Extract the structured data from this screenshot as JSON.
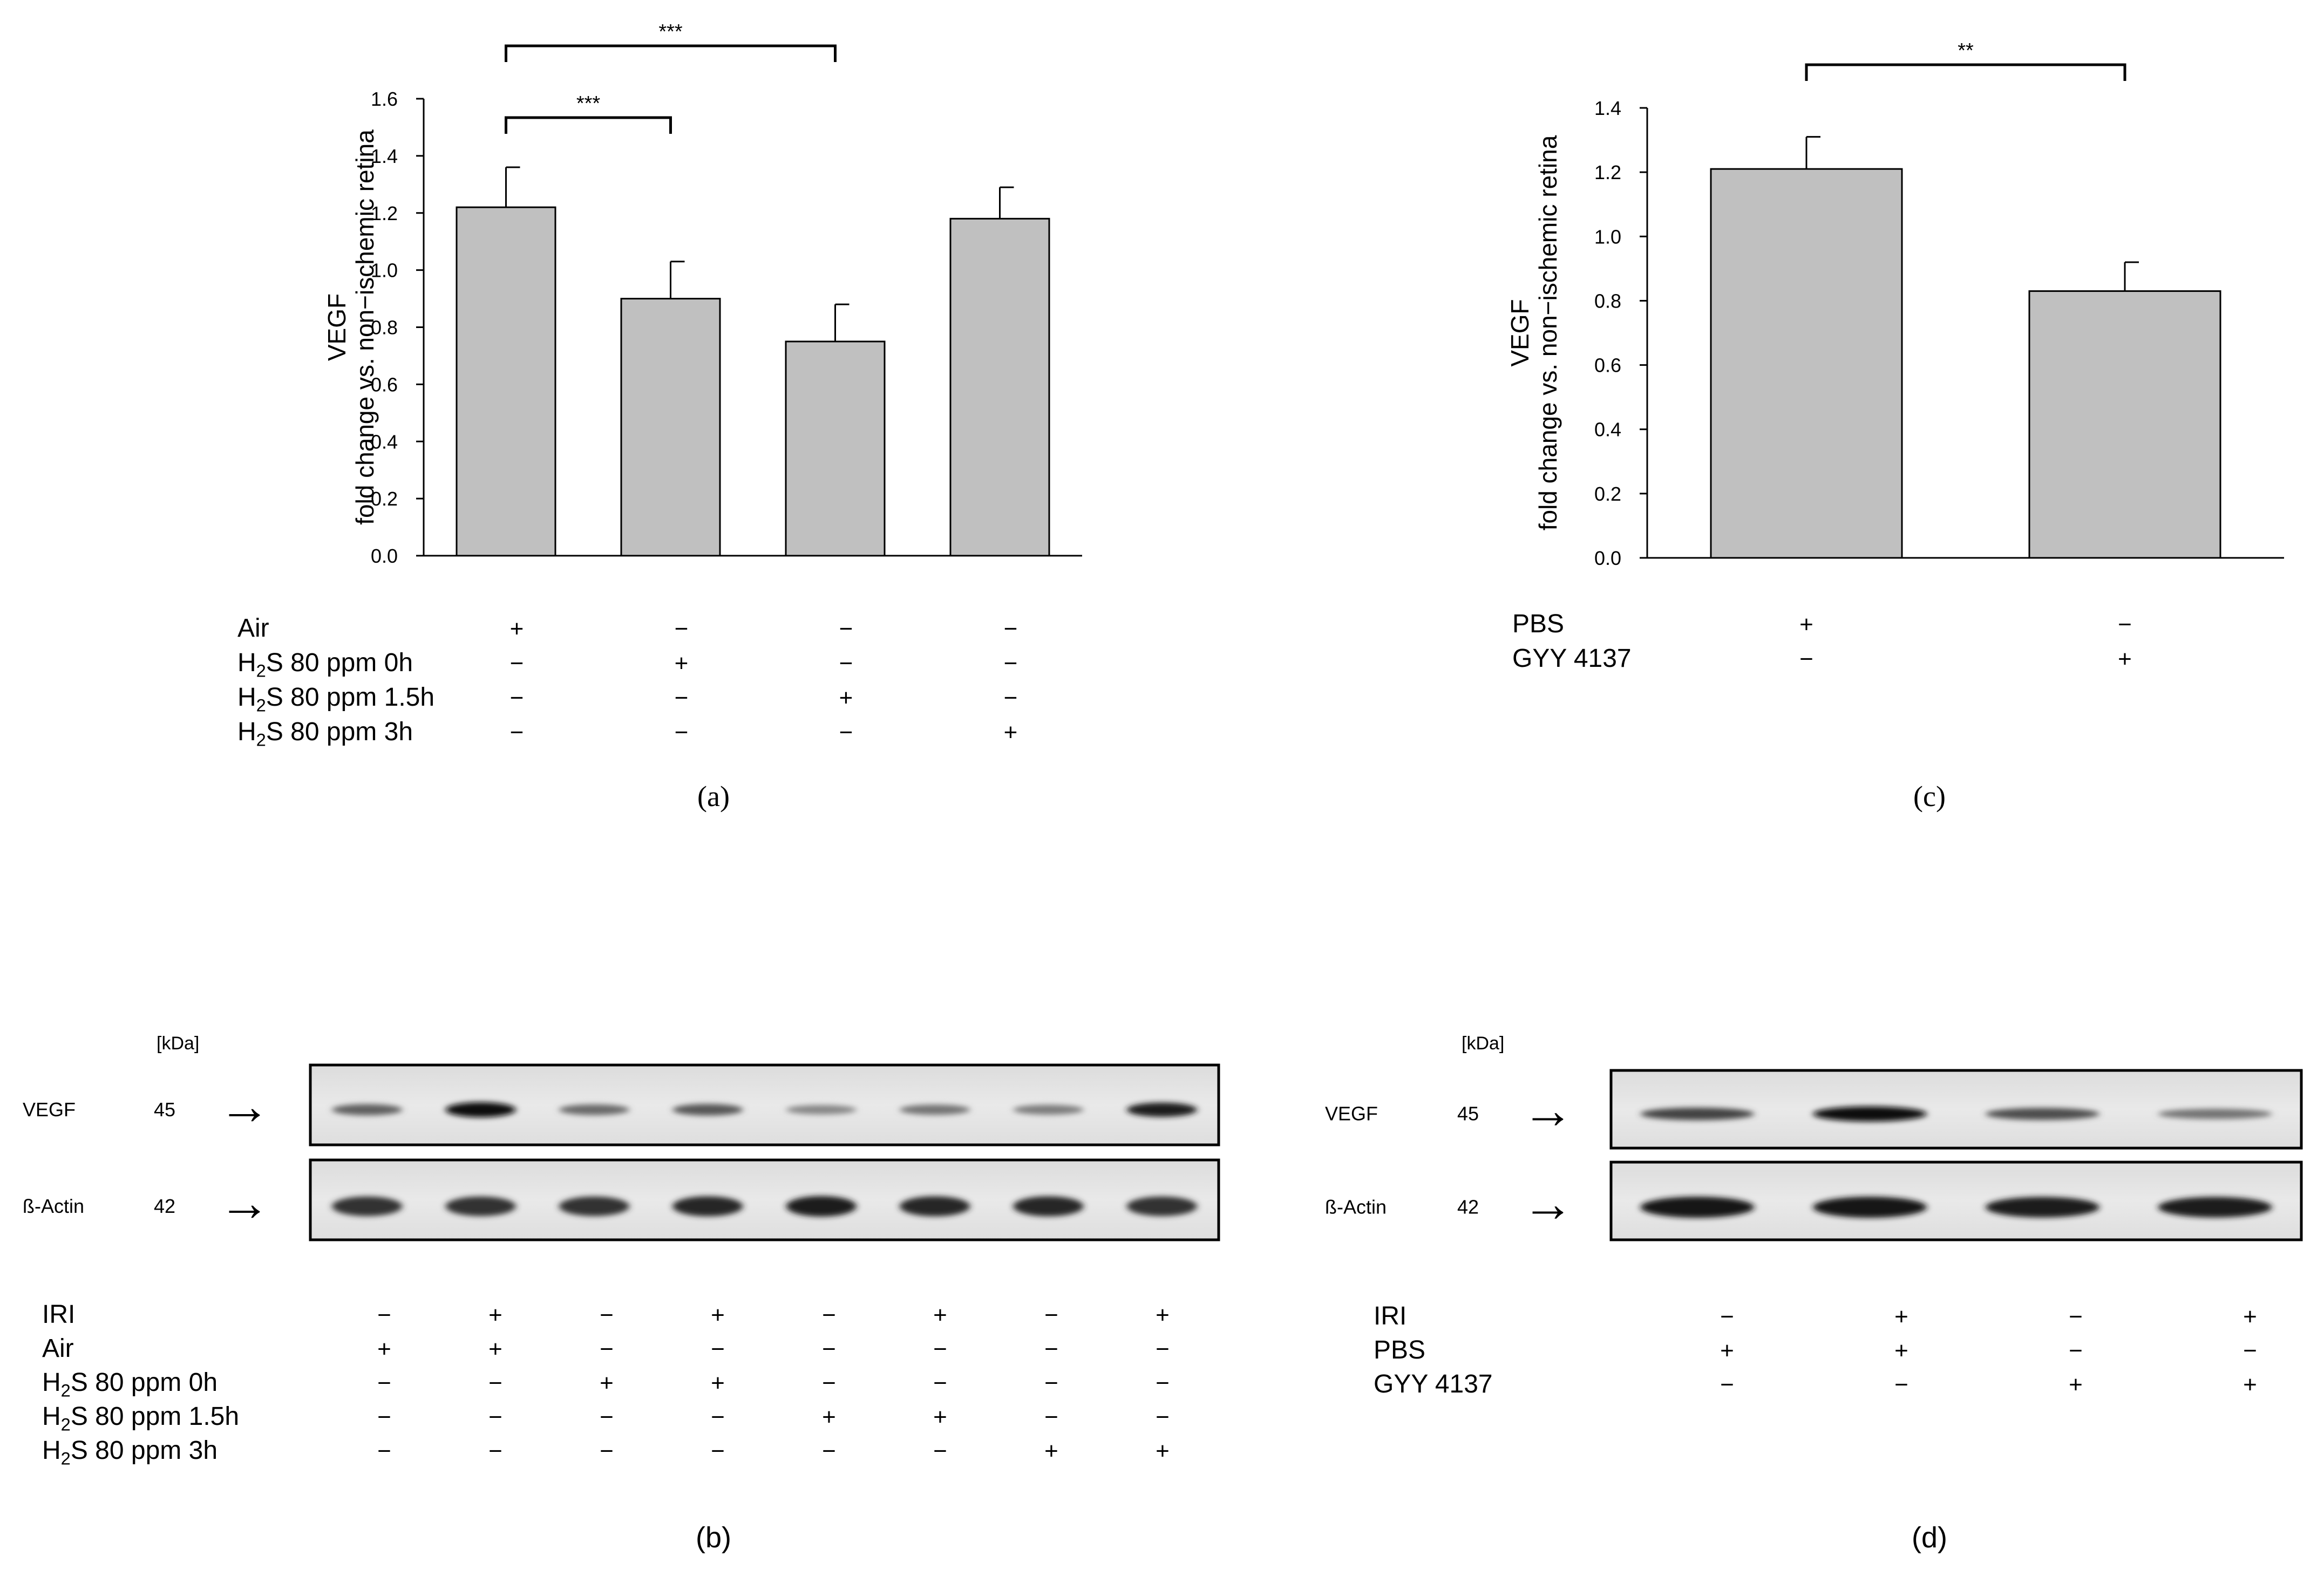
{
  "chart_data": [
    {
      "panel_label": "(a)",
      "type": "bar",
      "ylabel_lines": [
        "VEGF",
        "fold change vs. non−ischemic retina"
      ],
      "ylim": [
        0,
        1.6
      ],
      "yticks": [
        "0.0",
        "0.2",
        "0.4",
        "0.6",
        "0.8",
        "1.0",
        "1.2",
        "1.4",
        "1.6"
      ],
      "yticks_values": [
        0,
        0.2,
        0.4,
        0.6,
        0.8,
        1.0,
        1.2,
        1.4,
        1.6
      ],
      "values": [
        1.22,
        0.9,
        0.75,
        1.18
      ],
      "errors": [
        0.14,
        0.13,
        0.13,
        0.11
      ],
      "bar_color": "#c0c0c0",
      "grid": false,
      "significance": [
        {
          "from": 0,
          "to": 1,
          "label": "***"
        },
        {
          "from": 0,
          "to": 2,
          "label": "***"
        }
      ],
      "conditions": [
        {
          "label": "Air",
          "marks": [
            "+",
            "−",
            "−",
            "−"
          ]
        },
        {
          "label_pre": "H",
          "label_sub": "2",
          "label_post": "S 80 ppm 0h",
          "marks": [
            "−",
            "+",
            "−",
            "−"
          ]
        },
        {
          "label_pre": "H",
          "label_sub": "2",
          "label_post": "S 80 ppm 1.5h",
          "marks": [
            "−",
            "−",
            "+",
            "−"
          ]
        },
        {
          "label_pre": "H",
          "label_sub": "2",
          "label_post": "S 80 ppm 3h",
          "marks": [
            "−",
            "−",
            "−",
            "+"
          ]
        }
      ]
    },
    {
      "panel_label": "(c)",
      "type": "bar",
      "ylabel_lines": [
        "VEGF",
        "fold change vs. non−ischemic retina"
      ],
      "ylim": [
        0,
        1.4
      ],
      "yticks": [
        "0.0",
        "0.2",
        "0.4",
        "0.6",
        "0.8",
        "1.0",
        "1.2",
        "1.4"
      ],
      "yticks_values": [
        0,
        0.2,
        0.4,
        0.6,
        0.8,
        1.0,
        1.2,
        1.4
      ],
      "values": [
        1.21,
        0.83
      ],
      "errors": [
        0.1,
        0.09
      ],
      "bar_color": "#c0c0c0",
      "grid": false,
      "significance": [
        {
          "from": 0,
          "to": 1,
          "label": "**"
        }
      ],
      "conditions": [
        {
          "label": "PBS",
          "marks": [
            "+",
            "−"
          ]
        },
        {
          "label": "GYY 4137",
          "marks": [
            "−",
            "+"
          ]
        }
      ]
    }
  ],
  "blots": [
    {
      "panel_label": "(b)",
      "kda_label": "[kDa]",
      "rows": [
        {
          "name": "VEGF",
          "kda": "45",
          "arrow": "→",
          "intensities": [
            0.55,
            1.0,
            0.5,
            0.6,
            0.35,
            0.45,
            0.4,
            0.9
          ]
        },
        {
          "name": "ß-Actin",
          "kda": "42",
          "arrow": "→",
          "intensities": [
            0.8,
            0.8,
            0.8,
            0.85,
            0.9,
            0.85,
            0.85,
            0.8
          ]
        }
      ],
      "conditions": [
        {
          "label": "IRI",
          "marks": [
            "−",
            "+",
            "−",
            "+",
            "−",
            "+",
            "−",
            "+"
          ]
        },
        {
          "label": "Air",
          "marks": [
            "+",
            "+",
            "−",
            "−",
            "−",
            "−",
            "−",
            "−"
          ]
        },
        {
          "label_pre": "H",
          "label_sub": "2",
          "label_post": "S 80 ppm 0h",
          "marks": [
            "−",
            "−",
            "+",
            "+",
            "−",
            "−",
            "−",
            "−"
          ]
        },
        {
          "label_pre": "H",
          "label_sub": "2",
          "label_post": "S 80 ppm 1.5h",
          "marks": [
            "−",
            "−",
            "−",
            "−",
            "+",
            "+",
            "−",
            "−"
          ]
        },
        {
          "label_pre": "H",
          "label_sub": "2",
          "label_post": "S 80 ppm 3h",
          "marks": [
            "−",
            "−",
            "−",
            "−",
            "−",
            "−",
            "+",
            "+"
          ]
        }
      ]
    },
    {
      "panel_label": "(d)",
      "kda_label": "[kDa]",
      "rows": [
        {
          "name": "VEGF",
          "kda": "45",
          "arrow": "→",
          "intensities": [
            0.7,
            1.0,
            0.65,
            0.45
          ]
        },
        {
          "name": "ß-Actin",
          "kda": "42",
          "arrow": "→",
          "intensities": [
            0.95,
            0.95,
            0.9,
            0.9
          ]
        }
      ],
      "conditions": [
        {
          "label": "IRI",
          "marks": [
            "−",
            "+",
            "−",
            "+"
          ]
        },
        {
          "label": "PBS",
          "marks": [
            "+",
            "+",
            "−",
            "−"
          ]
        },
        {
          "label": "GYY 4137",
          "marks": [
            "−",
            "−",
            "+",
            "+"
          ]
        }
      ]
    }
  ]
}
